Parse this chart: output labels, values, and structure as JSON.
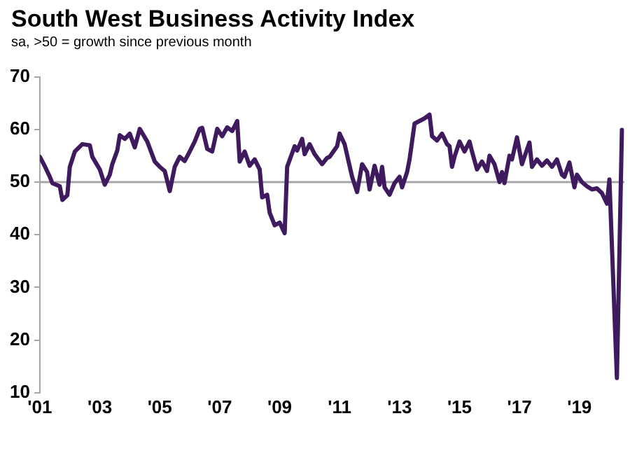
{
  "chart_data": {
    "type": "line",
    "title": "South West Business Activity Index",
    "subtitle": "sa, >50 = growth since previous month",
    "x": [
      "2001-01",
      "2001-03",
      "2001-05",
      "2001-06",
      "2001-09",
      "2001-10",
      "2001-12",
      "2002-01",
      "2002-03",
      "2002-06",
      "2002-09",
      "2002-10",
      "2003-01",
      "2003-03",
      "2003-05",
      "2003-06",
      "2003-08",
      "2003-09",
      "2003-11",
      "2004-01",
      "2004-03",
      "2004-05",
      "2004-08",
      "2004-11",
      "2005-01",
      "2005-03",
      "2005-05",
      "2005-07",
      "2005-09",
      "2005-11",
      "2006-01",
      "2006-03",
      "2006-05",
      "2006-06",
      "2006-08",
      "2006-10",
      "2006-12",
      "2007-02",
      "2007-04",
      "2007-06",
      "2007-08",
      "2007-09",
      "2007-11",
      "2008-01",
      "2008-03",
      "2008-05",
      "2008-06",
      "2008-08",
      "2008-09",
      "2008-11",
      "2009-01",
      "2009-03",
      "2009-04",
      "2009-07",
      "2009-08",
      "2009-10",
      "2009-11",
      "2010-01",
      "2010-03",
      "2010-06",
      "2010-08",
      "2010-09",
      "2010-12",
      "2011-01",
      "2011-03",
      "2011-06",
      "2011-08",
      "2011-10",
      "2011-12",
      "2012-01",
      "2012-03",
      "2012-05",
      "2012-06",
      "2012-07",
      "2012-09",
      "2012-11",
      "2013-01",
      "2013-02",
      "2013-04",
      "2013-05",
      "2013-07",
      "2013-09",
      "2013-11",
      "2014-01",
      "2014-02",
      "2014-04",
      "2014-06",
      "2014-08",
      "2014-09",
      "2014-10",
      "2014-11",
      "2015-01",
      "2015-03",
      "2015-05",
      "2015-06",
      "2015-08",
      "2015-10",
      "2015-12",
      "2016-01",
      "2016-03",
      "2016-05",
      "2016-06",
      "2016-07",
      "2016-09",
      "2016-10",
      "2016-12",
      "2017-02",
      "2017-03",
      "2017-05",
      "2017-06",
      "2017-08",
      "2017-10",
      "2017-12",
      "2018-02",
      "2018-04",
      "2018-06",
      "2018-07",
      "2018-09",
      "2018-11",
      "2018-12",
      "2019-02",
      "2019-04",
      "2019-06",
      "2019-08",
      "2019-10",
      "2019-12",
      "2020-01",
      "2020-04",
      "2020-06"
    ],
    "series": [
      {
        "color": "#3f1a5e",
        "values": [
          54.8,
          53,
          51,
          49.8,
          49.2,
          46.6,
          47.5,
          52.9,
          55.8,
          57.2,
          57,
          54.8,
          52.4,
          49.5,
          51.4,
          53.4,
          56,
          58.9,
          58.2,
          59.2,
          56.6,
          60.1,
          57.7,
          53.9,
          52.9,
          52.1,
          48.3,
          52.9,
          54.8,
          54,
          55.8,
          57.7,
          60.1,
          60.3,
          56.3,
          55.8,
          60.1,
          58.7,
          60.4,
          59.7,
          61.6,
          53.9,
          55.8,
          53.1,
          54.3,
          52.4,
          47.1,
          47.6,
          44.2,
          41.8,
          42.3,
          40.3,
          52.9,
          56.8,
          56,
          58.2,
          55.3,
          57.2,
          55.3,
          53.4,
          54.6,
          54.8,
          56.8,
          59.2,
          57.2,
          51,
          48.1,
          53.4,
          51.9,
          48.6,
          53.1,
          49.5,
          52.9,
          49,
          47.6,
          49.8,
          51,
          49,
          51.9,
          54.3,
          61.1,
          61.6,
          62.1,
          62.8,
          58.7,
          57.9,
          59.2,
          57.2,
          56.8,
          52.9,
          54.8,
          57.7,
          55.8,
          57.7,
          55.8,
          52.4,
          53.9,
          52.1,
          55,
          53.4,
          50,
          51.9,
          49.8,
          55,
          54.3,
          58.5,
          53.4,
          54.8,
          57.5,
          52.9,
          54.3,
          53.1,
          54.1,
          52.9,
          54.3,
          51.4,
          51,
          53.7,
          49,
          51.4,
          50,
          49.2,
          48.6,
          48.8,
          47.9,
          45.9,
          50.5,
          12.8,
          59.9
        ]
      }
    ],
    "xlim": [
      "2001-01",
      "2020-07"
    ],
    "xticks": [
      {
        "value": "2001-01",
        "label": "'01"
      },
      {
        "value": "2003-01",
        "label": "'03"
      },
      {
        "value": "2005-01",
        "label": "'05"
      },
      {
        "value": "2007-01",
        "label": "'07"
      },
      {
        "value": "2009-01",
        "label": "'09"
      },
      {
        "value": "2011-01",
        "label": "'11"
      },
      {
        "value": "2013-01",
        "label": "'13"
      },
      {
        "value": "2015-01",
        "label": "'15"
      },
      {
        "value": "2017-01",
        "label": "'17"
      },
      {
        "value": "2019-01",
        "label": "'19"
      }
    ],
    "ylim": [
      10,
      70
    ],
    "yticks": [
      10,
      20,
      30,
      40,
      50,
      60,
      70
    ],
    "ref_lines": [
      {
        "axis": "y",
        "value": 50,
        "color": "#a6a6a6"
      }
    ],
    "grid": false,
    "legend": false,
    "marker": "none",
    "line_style": "solid"
  }
}
